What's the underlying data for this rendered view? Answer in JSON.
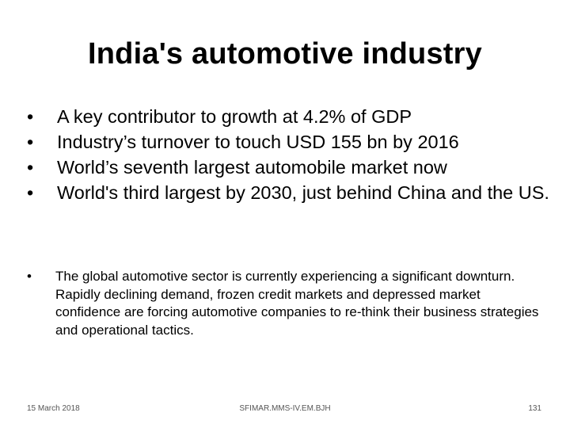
{
  "slide": {
    "title": "India's automotive industry",
    "main_bullets": [
      "A key contributor to growth at 4.2% of GDP",
      "Industry’s turnover to touch USD 155 bn by 2016",
      "World’s seventh largest automobile market now",
      "World's third largest by 2030, just behind China and the US."
    ],
    "sub_bullets": [
      "The global automotive sector is currently experiencing a significant downturn. Rapidly declining demand, frozen credit markets and depressed market confidence are forcing automotive companies to re-think their business strategies and operational tactics."
    ],
    "bullet_glyph": "•",
    "footer": {
      "date": "15 March 2018",
      "center": "SFIMAR.MMS-IV.EM.BJH",
      "page_number": "131"
    }
  }
}
